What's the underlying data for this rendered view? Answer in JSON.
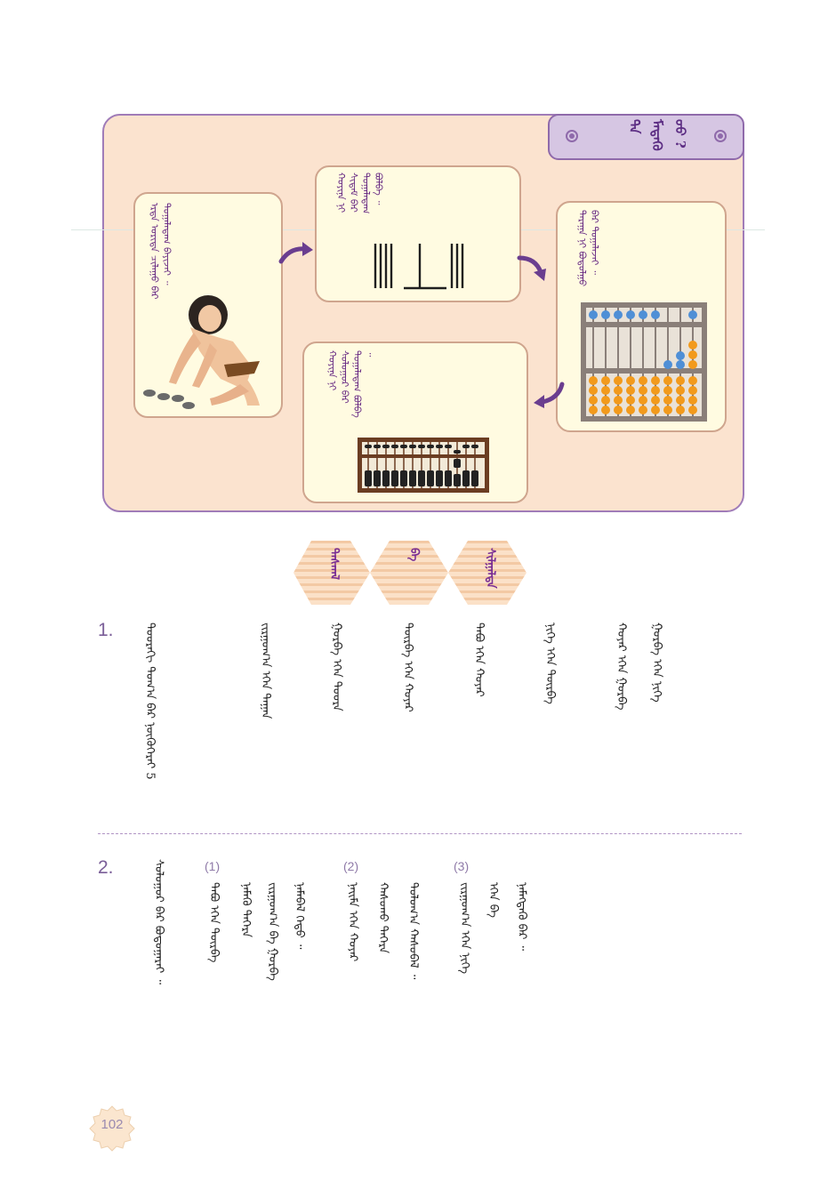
{
  "panel": {
    "title": "ᠲᠠ ᠮᠡᠳᠡᠬᠦ ᠦᠦ ?",
    "cards": [
      {
        "text": "ᠡᠷᠲᠡ ᠤᠷᠢᠳᠠ ᠴᠢᠯᠠᠭᠤ ᠪᠠᠷ ᠲᠣᠭᠠᠯᠠᠳᠠᠭ ᠪᠠᠶᠢᠵᠠᠢ ᠃"
      },
      {
        "text": "ᠬᠣᠶᠢᠨᠠ ᠨᠢ ᠰᠢᠳᠠᠮ ᠪᠠᠷ ᠲᠣᠭᠠᠯᠠᠳᠠᠭ ᠪᠣᠯᠪᠠ ᠃"
      },
      {
        "text": "ᠳᠠᠷᠠᠭᠠ ᠨᠢ ᠪᠣᠳᠣᠯᠭᠤ ᠪᠠᠷ ᠲᠣᠭᠠᠯᠠᠵᠠᠢ ᠃"
      },
      {
        "text": "ᠬᠣᠶᠢᠨᠠ ᠨᠢ ᠰᠣᠯᠣᠭᠤᠷ ᠪᠠᠷ ᠲᠣᠭᠠᠯᠠᠳᠠᠭ ᠪᠣᠯᠪᠠ ᠃"
      }
    ]
  },
  "section": {
    "labels": [
      "ᠳᠠᠰᠬᠠᠯ",
      "ᠪᠠ",
      "ᠰᠢᠯᠭᠠᠯᠲᠠ"
    ]
  },
  "exercise1": {
    "number": "1.",
    "columns": [
      "ᠳᠣᠣᠷᠠᠬᠢ ᠲᠣᠭ᠎ᠠ ᠪᠠᠷ ᠨᠥᠬᠦᠭᠡᠷᠡᠢ 5",
      "ᠵᠢᠷᠭᠤᠭ᠎ᠠ ᠡᠭᠡᠨ ᠳᠠᠭᠠᠨ",
      "ᠭᠤᠷᠪᠠ ᠡᠭᠡᠨ ᠳᠣᠣᠷᠠ",
      "ᠳᠥᠷᠪᠡ ᠡᠭᠡᠨ ᠬᠣᠶᠠᠷ",
      "ᠲᠠᠪᠤ ᠡᠭᠡᠨ ᠬᠣᠶᠠᠷ",
      "ᠨᠢᠭᠡ ᠡᠭᠡᠨ ᠳᠥᠷᠪᠡ",
      "ᠬᠣᠶᠠᠷ ᠡᠭᠡᠨ ᠭᠤᠷᠪᠠ",
      "ᠭᠤᠷᠪᠠ ᠡᠭᠡᠨ ᠨᠢᠭᠡ"
    ]
  },
  "exercise2": {
    "number": "2.",
    "intro": "ᠰᠣᠯᠣᠭᠤᠷ ᠪᠠᠷ ᠪᠣᠳᠤᠭᠠᠷᠠᠢ ᠃",
    "subs": [
      {
        "label": "(1)",
        "columns": [
          "ᠲᠠᠪᠤ ᠡᠭᠡᠨ ᠳᠥᠷᠪᠡ",
          "ᠨᠡᠮᠡᠬᠦ ᠳᠡᠭᠡᠷᠡ",
          "ᠵᠢᠷᠭᠤᠭ᠎ᠠ ᠪᠠ ᠭᠤᠷᠪᠠ",
          "ᠨᠡᠮᠡᠪᠡᠯ ᠬᠡᠳᠦ ᠃"
        ]
      },
      {
        "label": "(2)",
        "columns": [
          "ᠨᠠᠢᠮᠠ ᠡᠭᠡᠨ ᠬᠣᠶᠠᠷ",
          "ᠬᠠᠰᠤᠬᠤ ᠳᠡᠭᠡᠷᠡ",
          "ᠳᠣᠯᠣᠭ᠎ᠠ ᠬᠠᠰᠤᠪᠠᠯ ᠃"
        ]
      },
      {
        "label": "(3)",
        "columns": [
          "ᠵᠢᠷᠭᠤᠭ᠎ᠠ ᠡᠭᠡᠨ ᠨᠢᠭᠡ",
          "ᠡᠭᠡᠨ ᠪᠠ",
          "ᠨᠡᠮᠡᠭᠳᠡᠬᠦ ᠪᠠᠷ ᠃"
        ]
      }
    ]
  },
  "page": {
    "number": "102"
  }
}
